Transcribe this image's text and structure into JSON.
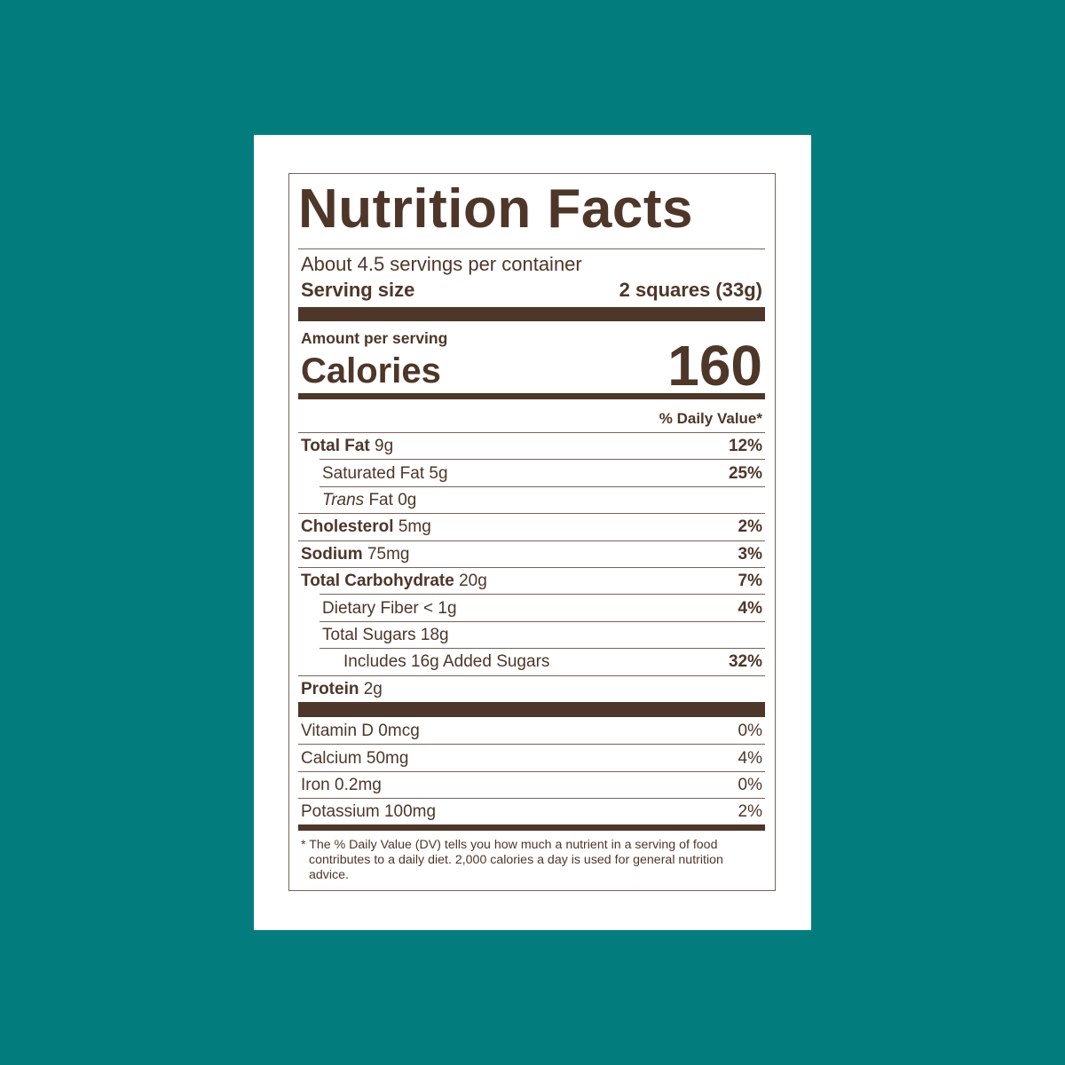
{
  "colors": {
    "background": "#037c7e",
    "ink": "#4e3629",
    "card": "#ffffff"
  },
  "label": {
    "title": "Nutrition Facts",
    "servings_per_container": "About 4.5 servings per container",
    "serving_size_label": "Serving size",
    "serving_size_value": "2 squares (33g)",
    "amount_per_serving": "Amount per serving",
    "calories_label": "Calories",
    "calories_value": "160",
    "daily_value_header": "% Daily Value*",
    "nutrients": [
      {
        "name": "Total Fat",
        "amount": "9g",
        "dv": "12%",
        "bold": true,
        "indent": 0
      },
      {
        "name": "Saturated Fat",
        "amount": "5g",
        "dv": "25%",
        "bold": false,
        "indent": 1
      },
      {
        "name": "Trans",
        "name_suffix": "Fat",
        "amount": "0g",
        "dv": "",
        "bold": false,
        "indent": 1,
        "italic_prefix": true
      },
      {
        "name": "Cholesterol",
        "amount": "5mg",
        "dv": "2%",
        "bold": true,
        "indent": 0
      },
      {
        "name": "Sodium",
        "amount": "75mg",
        "dv": "3%",
        "bold": true,
        "indent": 0
      },
      {
        "name": "Total Carbohydrate",
        "amount": "20g",
        "dv": "7%",
        "bold": true,
        "indent": 0
      },
      {
        "name": "Dietary Fiber",
        "amount": "< 1g",
        "dv": "4%",
        "bold": false,
        "indent": 1
      },
      {
        "name": "Total Sugars",
        "amount": "18g",
        "dv": "",
        "bold": false,
        "indent": 1
      },
      {
        "name": "Includes 16g Added Sugars",
        "amount": "",
        "dv": "32%",
        "bold": false,
        "indent": 2
      },
      {
        "name": "Protein",
        "amount": "2g",
        "dv": "",
        "bold": true,
        "indent": 0
      }
    ],
    "vitamins": [
      {
        "name": "Vitamin D",
        "amount": "0mcg",
        "dv": "0%"
      },
      {
        "name": "Calcium",
        "amount": "50mg",
        "dv": "4%"
      },
      {
        "name": "Iron",
        "amount": "0.2mg",
        "dv": "0%"
      },
      {
        "name": "Potassium",
        "amount": "100mg",
        "dv": "2%"
      }
    ],
    "footnote": "* The % Daily Value (DV) tells you how much a nutrient in a serving of food contributes to a daily diet. 2,000 calories a day is used for general nutrition advice."
  }
}
